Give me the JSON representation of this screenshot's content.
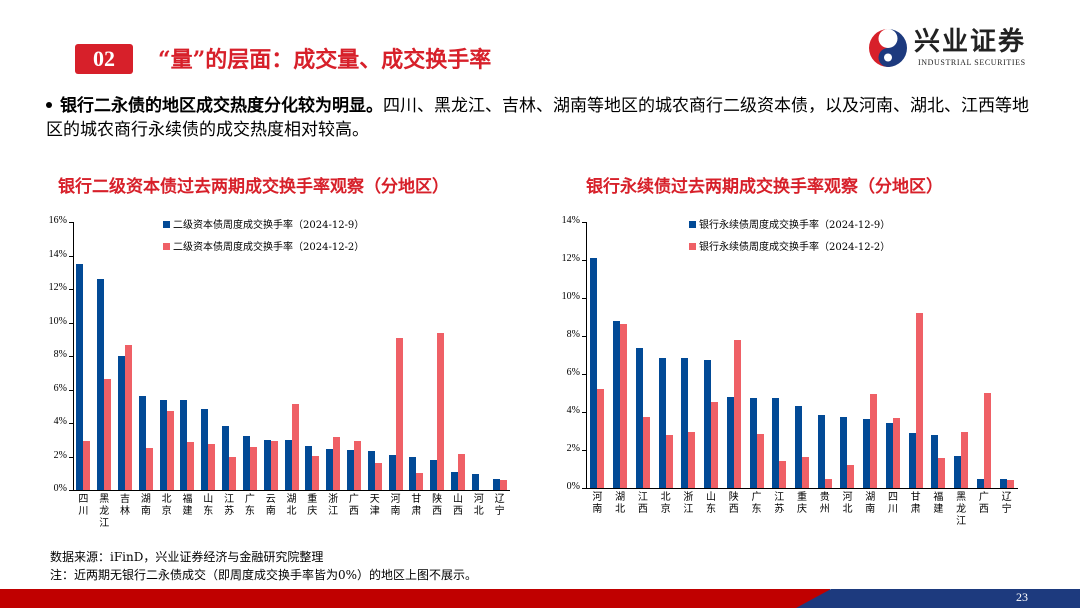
{
  "header": {
    "section_number": "02",
    "section_title": "“量”的层面：成交量、成交换手率",
    "logo": {
      "cn": "兴业证券",
      "en": "INDUSTRIAL SECURITIES",
      "colors": {
        "red": "#d7202a",
        "blue": "#1d3a7e"
      }
    }
  },
  "bullet": {
    "bold": "银行二永债的地区成交热度分化较为明显。",
    "text": "四川、黑龙江、吉林、湖南等地区的城农商行二级资本债，以及河南、湖北、江西等地区的城农商行永续债的成交热度相对较高。"
  },
  "chart_titles": {
    "left": "银行二级资本债过去两期成交换手率观察（分地区）",
    "right": "银行永续债过去两期成交换手率观察（分地区）"
  },
  "chart_data": [
    {
      "type": "bar",
      "title": "银行二级资本债过去两期成交换手率观察（分地区）",
      "xlabel": "",
      "ylabel": "",
      "ylim": [
        0,
        16
      ],
      "yticks": [
        "0%",
        "2%",
        "4%",
        "6%",
        "8%",
        "10%",
        "12%",
        "14%",
        "16%"
      ],
      "legend_position": "top",
      "grid": false,
      "categories": [
        "四川",
        "黑龙江",
        "吉林",
        "湖南",
        "北京",
        "福建",
        "山东",
        "江苏",
        "广东",
        "云南",
        "湖北",
        "重庆",
        "浙江",
        "广西",
        "天津",
        "河南",
        "甘肃",
        "陕西",
        "山西",
        "河北",
        "辽宁"
      ],
      "series": [
        {
          "name": "二级资本债周度成交换手率（2024-12-9）",
          "color": "#024a96",
          "values": [
            13.5,
            12.6,
            8.0,
            5.6,
            5.4,
            5.35,
            4.85,
            3.8,
            3.2,
            3.0,
            3.0,
            2.6,
            2.45,
            2.4,
            2.3,
            2.1,
            2.0,
            1.8,
            1.1,
            0.95,
            0.65
          ]
        },
        {
          "name": "二级资本债周度成交换手率（2024-12-2）",
          "color": "#ef6066",
          "values": [
            2.9,
            6.65,
            8.65,
            2.5,
            4.7,
            2.85,
            2.75,
            2.0,
            2.55,
            2.95,
            5.15,
            2.05,
            3.15,
            2.9,
            1.6,
            9.1,
            1.0,
            9.35,
            2.15,
            0.0,
            0.6
          ]
        }
      ]
    },
    {
      "type": "bar",
      "title": "银行永续债过去两期成交换手率观察（分地区）",
      "xlabel": "",
      "ylabel": "",
      "ylim": [
        0,
        14
      ],
      "yticks": [
        "0%",
        "2%",
        "4%",
        "6%",
        "8%",
        "10%",
        "12%",
        "14%"
      ],
      "legend_position": "top",
      "grid": false,
      "categories": [
        "河南",
        "湖北",
        "江西",
        "北京",
        "浙江",
        "山东",
        "陕西",
        "广东",
        "江苏",
        "重庆",
        "贵州",
        "河北",
        "湖南",
        "四川",
        "甘肃",
        "福建",
        "黑龙江",
        "广西",
        "辽宁"
      ],
      "series": [
        {
          "name": "银行永续债周度成交换手率（2024-12-9）",
          "color": "#024a96",
          "values": [
            12.1,
            8.8,
            7.35,
            6.85,
            6.85,
            6.75,
            4.8,
            4.75,
            4.75,
            4.3,
            3.85,
            3.75,
            3.65,
            3.4,
            2.9,
            2.8,
            1.7,
            0.5,
            0.45
          ]
        },
        {
          "name": "银行永续债周度成交换手率（2024-12-2）",
          "color": "#ef6066",
          "values": [
            5.2,
            8.65,
            3.75,
            2.8,
            2.95,
            4.55,
            7.8,
            2.85,
            1.4,
            1.65,
            0.5,
            1.2,
            4.95,
            3.7,
            9.2,
            1.6,
            2.95,
            5.0,
            0.4
          ]
        }
      ]
    }
  ],
  "footer": {
    "source": "数据来源：iFinD，兴业证券经济与金融研究院整理",
    "note": "注：近两期无银行二永债成交（即周度成交换手率皆为0%）的地区上图不展示。",
    "page_number": "23"
  }
}
